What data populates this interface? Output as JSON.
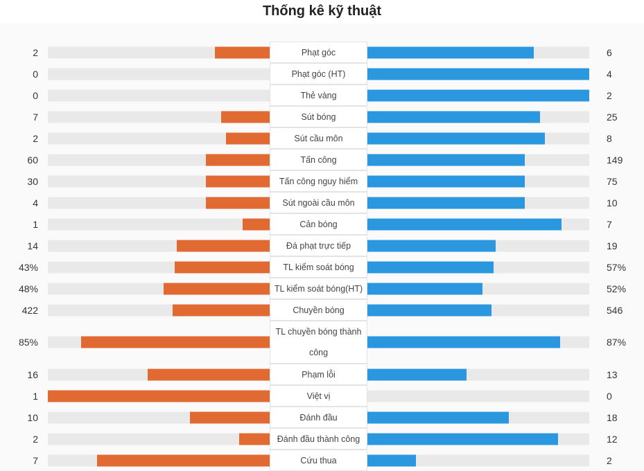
{
  "title": "Thống kê kỹ thuật",
  "chart_data": {
    "type": "bar",
    "title": "Thống kê kỹ thuật",
    "orientation": "horizontal-diverging",
    "colors": {
      "left": "#e06a32",
      "right": "#2b97de",
      "track": "#e9e9e9"
    },
    "rows": [
      {
        "label": "Phạt góc",
        "left": "2",
        "right": "6",
        "left_frac": 0.25,
        "right_frac": 0.75
      },
      {
        "label": "Phạt góc (HT)",
        "left": "0",
        "right": "4",
        "left_frac": 0,
        "right_frac": 1
      },
      {
        "label": "Thẻ vàng",
        "left": "0",
        "right": "2",
        "left_frac": 0,
        "right_frac": 1
      },
      {
        "label": "Sút bóng",
        "left": "7",
        "right": "25",
        "left_frac": 0.22,
        "right_frac": 0.78
      },
      {
        "label": "Sút cầu môn",
        "left": "2",
        "right": "8",
        "left_frac": 0.2,
        "right_frac": 0.8
      },
      {
        "label": "Tấn công",
        "left": "60",
        "right": "149",
        "left_frac": 0.29,
        "right_frac": 0.71
      },
      {
        "label": "Tấn công nguy hiểm",
        "left": "30",
        "right": "75",
        "left_frac": 0.29,
        "right_frac": 0.71
      },
      {
        "label": "Sút ngoài cầu môn",
        "left": "4",
        "right": "10",
        "left_frac": 0.29,
        "right_frac": 0.71
      },
      {
        "label": "Cản bóng",
        "left": "1",
        "right": "7",
        "left_frac": 0.125,
        "right_frac": 0.875
      },
      {
        "label": "Đá phạt trực tiếp",
        "left": "14",
        "right": "19",
        "left_frac": 0.42,
        "right_frac": 0.58
      },
      {
        "label": "TL kiểm soát bóng",
        "left": "43%",
        "right": "57%",
        "left_frac": 0.43,
        "right_frac": 0.57
      },
      {
        "label": "TL kiểm soát bóng(HT)",
        "left": "48%",
        "right": "52%",
        "left_frac": 0.48,
        "right_frac": 0.52
      },
      {
        "label": "Chuyền bóng",
        "left": "422",
        "right": "546",
        "left_frac": 0.44,
        "right_frac": 0.56
      },
      {
        "label": "TL chuyền bóng thành công",
        "left": "85%",
        "right": "87%",
        "left_frac": 0.85,
        "right_frac": 0.87
      },
      {
        "label": "Phạm lỗi",
        "left": "16",
        "right": "13",
        "left_frac": 0.55,
        "right_frac": 0.45
      },
      {
        "label": "Việt vị",
        "left": "1",
        "right": "0",
        "left_frac": 1,
        "right_frac": 0
      },
      {
        "label": "Đánh đầu",
        "left": "10",
        "right": "18",
        "left_frac": 0.36,
        "right_frac": 0.64
      },
      {
        "label": "Đánh đầu thành công",
        "left": "2",
        "right": "12",
        "left_frac": 0.14,
        "right_frac": 0.86
      },
      {
        "label": "Cứu thua",
        "left": "7",
        "right": "2",
        "left_frac": 0.78,
        "right_frac": 0.22
      }
    ]
  }
}
